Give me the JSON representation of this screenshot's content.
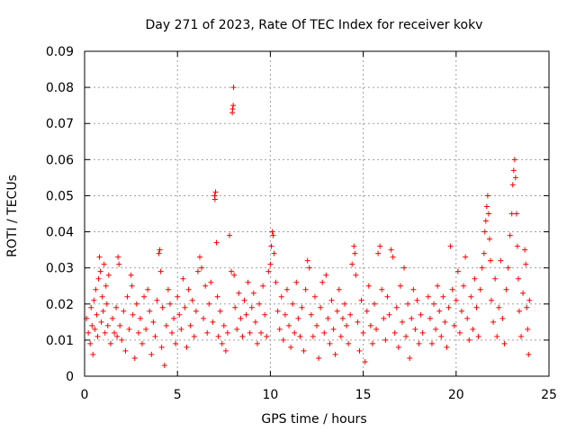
{
  "chart_data": {
    "type": "scatter",
    "title": "Day 271 of 2023, Rate Of TEC Index for receiver kokv",
    "xlabel": "GPS time / hours",
    "ylabel": "ROTI / TECUs",
    "xlim": [
      0,
      25
    ],
    "ylim": [
      0,
      0.09
    ],
    "xticks": [
      0,
      5,
      10,
      15,
      20,
      25
    ],
    "xtick_labels": [
      "0",
      "5",
      "10",
      "15",
      "20",
      "25"
    ],
    "yticks": [
      0,
      0.01,
      0.02,
      0.03,
      0.04,
      0.05,
      0.06,
      0.07,
      0.08,
      0.09
    ],
    "ytick_labels": [
      "0",
      "0.01",
      "0.02",
      "0.03",
      "0.04",
      "0.05",
      "0.06",
      "0.07",
      "0.08",
      "0.09"
    ],
    "grid": true,
    "marker": "+",
    "color": "#ff0000",
    "series": [
      {
        "name": "ROTI",
        "points": [
          [
            0.1,
            0.016
          ],
          [
            0.2,
            0.012
          ],
          [
            0.3,
            0.009
          ],
          [
            0.35,
            0.019
          ],
          [
            0.4,
            0.014
          ],
          [
            0.45,
            0.006
          ],
          [
            0.5,
            0.021
          ],
          [
            0.55,
            0.013
          ],
          [
            0.6,
            0.024
          ],
          [
            0.65,
            0.017
          ],
          [
            0.7,
            0.011
          ],
          [
            0.75,
            0.027
          ],
          [
            0.8,
            0.033
          ],
          [
            0.85,
            0.029
          ],
          [
            0.9,
            0.015
          ],
          [
            0.95,
            0.022
          ],
          [
            1.0,
            0.018
          ],
          [
            1.05,
            0.031
          ],
          [
            1.1,
            0.012
          ],
          [
            1.15,
            0.025
          ],
          [
            1.2,
            0.02
          ],
          [
            1.25,
            0.014
          ],
          [
            1.3,
            0.028
          ],
          [
            1.4,
            0.009
          ],
          [
            1.5,
            0.016
          ],
          [
            1.6,
            0.012
          ],
          [
            1.7,
            0.019
          ],
          [
            1.75,
            0.011
          ],
          [
            1.8,
            0.033
          ],
          [
            1.85,
            0.031
          ],
          [
            1.9,
            0.014
          ],
          [
            2.0,
            0.01
          ],
          [
            2.1,
            0.018
          ],
          [
            2.2,
            0.007
          ],
          [
            2.3,
            0.022
          ],
          [
            2.4,
            0.013
          ],
          [
            2.5,
            0.028
          ],
          [
            2.55,
            0.025
          ],
          [
            2.6,
            0.017
          ],
          [
            2.7,
            0.005
          ],
          [
            2.8,
            0.02
          ],
          [
            2.9,
            0.012
          ],
          [
            3.0,
            0.016
          ],
          [
            3.1,
            0.009
          ],
          [
            3.2,
            0.022
          ],
          [
            3.3,
            0.013
          ],
          [
            3.4,
            0.024
          ],
          [
            3.5,
            0.018
          ],
          [
            3.6,
            0.006
          ],
          [
            3.7,
            0.015
          ],
          [
            3.8,
            0.011
          ],
          [
            3.9,
            0.021
          ],
          [
            4.0,
            0.034
          ],
          [
            4.05,
            0.035
          ],
          [
            4.1,
            0.029
          ],
          [
            4.15,
            0.008
          ],
          [
            4.2,
            0.019
          ],
          [
            4.3,
            0.003
          ],
          [
            4.4,
            0.014
          ],
          [
            4.5,
            0.024
          ],
          [
            4.6,
            0.02
          ],
          [
            4.7,
            0.012
          ],
          [
            4.8,
            0.016
          ],
          [
            4.9,
            0.009
          ],
          [
            5.0,
            0.022
          ],
          [
            5.1,
            0.017
          ],
          [
            5.2,
            0.013
          ],
          [
            5.3,
            0.027
          ],
          [
            5.4,
            0.019
          ],
          [
            5.5,
            0.008
          ],
          [
            5.6,
            0.024
          ],
          [
            5.7,
            0.014
          ],
          [
            5.8,
            0.021
          ],
          [
            5.9,
            0.011
          ],
          [
            6.0,
            0.018
          ],
          [
            6.1,
            0.029
          ],
          [
            6.2,
            0.033
          ],
          [
            6.3,
            0.03
          ],
          [
            6.4,
            0.016
          ],
          [
            6.5,
            0.025
          ],
          [
            6.6,
            0.012
          ],
          [
            6.7,
            0.02
          ],
          [
            6.8,
            0.026
          ],
          [
            6.9,
            0.015
          ],
          [
            7.0,
            0.05
          ],
          [
            7.02,
            0.049
          ],
          [
            7.05,
            0.051
          ],
          [
            7.1,
            0.037
          ],
          [
            7.15,
            0.022
          ],
          [
            7.2,
            0.011
          ],
          [
            7.3,
            0.018
          ],
          [
            7.4,
            0.009
          ],
          [
            7.5,
            0.014
          ],
          [
            7.6,
            0.007
          ],
          [
            7.7,
            0.012
          ],
          [
            7.8,
            0.039
          ],
          [
            7.9,
            0.029
          ],
          [
            7.95,
            0.073
          ],
          [
            7.97,
            0.074
          ],
          [
            8.0,
            0.075
          ],
          [
            8.02,
            0.08
          ],
          [
            8.05,
            0.028
          ],
          [
            8.1,
            0.019
          ],
          [
            8.2,
            0.013
          ],
          [
            8.3,
            0.023
          ],
          [
            8.4,
            0.016
          ],
          [
            8.5,
            0.011
          ],
          [
            8.6,
            0.021
          ],
          [
            8.7,
            0.017
          ],
          [
            8.8,
            0.026
          ],
          [
            8.9,
            0.012
          ],
          [
            9.0,
            0.019
          ],
          [
            9.1,
            0.023
          ],
          [
            9.2,
            0.015
          ],
          [
            9.3,
            0.009
          ],
          [
            9.4,
            0.02
          ],
          [
            9.5,
            0.012
          ],
          [
            9.6,
            0.025
          ],
          [
            9.7,
            0.017
          ],
          [
            9.8,
            0.011
          ],
          [
            9.9,
            0.029
          ],
          [
            10.0,
            0.031
          ],
          [
            10.05,
            0.036
          ],
          [
            10.1,
            0.04
          ],
          [
            10.15,
            0.039
          ],
          [
            10.2,
            0.034
          ],
          [
            10.3,
            0.026
          ],
          [
            10.4,
            0.018
          ],
          [
            10.5,
            0.013
          ],
          [
            10.6,
            0.022
          ],
          [
            10.7,
            0.01
          ],
          [
            10.8,
            0.017
          ],
          [
            10.9,
            0.024
          ],
          [
            11.0,
            0.014
          ],
          [
            11.1,
            0.008
          ],
          [
            11.2,
            0.02
          ],
          [
            11.3,
            0.012
          ],
          [
            11.4,
            0.026
          ],
          [
            11.5,
            0.016
          ],
          [
            11.6,
            0.011
          ],
          [
            11.7,
            0.019
          ],
          [
            11.8,
            0.007
          ],
          [
            11.9,
            0.024
          ],
          [
            12.0,
            0.032
          ],
          [
            12.1,
            0.03
          ],
          [
            12.2,
            0.017
          ],
          [
            12.3,
            0.011
          ],
          [
            12.4,
            0.022
          ],
          [
            12.5,
            0.014
          ],
          [
            12.6,
            0.005
          ],
          [
            12.7,
            0.019
          ],
          [
            12.8,
            0.026
          ],
          [
            12.9,
            0.012
          ],
          [
            13.0,
            0.028
          ],
          [
            13.1,
            0.016
          ],
          [
            13.2,
            0.009
          ],
          [
            13.3,
            0.021
          ],
          [
            13.4,
            0.013
          ],
          [
            13.5,
            0.006
          ],
          [
            13.6,
            0.018
          ],
          [
            13.7,
            0.024
          ],
          [
            13.8,
            0.011
          ],
          [
            13.9,
            0.016
          ],
          [
            14.0,
            0.02
          ],
          [
            14.1,
            0.014
          ],
          [
            14.2,
            0.009
          ],
          [
            14.3,
            0.017
          ],
          [
            14.4,
            0.031
          ],
          [
            14.5,
            0.036
          ],
          [
            14.55,
            0.034
          ],
          [
            14.6,
            0.028
          ],
          [
            14.7,
            0.015
          ],
          [
            14.8,
            0.007
          ],
          [
            14.9,
            0.021
          ],
          [
            15.0,
            0.012
          ],
          [
            15.1,
            0.004
          ],
          [
            15.2,
            0.018
          ],
          [
            15.3,
            0.025
          ],
          [
            15.4,
            0.014
          ],
          [
            15.5,
            0.009
          ],
          [
            15.6,
            0.02
          ],
          [
            15.7,
            0.013
          ],
          [
            15.8,
            0.034
          ],
          [
            15.9,
            0.036
          ],
          [
            16.0,
            0.024
          ],
          [
            16.1,
            0.016
          ],
          [
            16.2,
            0.01
          ],
          [
            16.3,
            0.022
          ],
          [
            16.4,
            0.017
          ],
          [
            16.5,
            0.035
          ],
          [
            16.6,
            0.033
          ],
          [
            16.7,
            0.012
          ],
          [
            16.8,
            0.019
          ],
          [
            16.9,
            0.008
          ],
          [
            17.0,
            0.025
          ],
          [
            17.1,
            0.015
          ],
          [
            17.2,
            0.03
          ],
          [
            17.3,
            0.011
          ],
          [
            17.4,
            0.02
          ],
          [
            17.5,
            0.005
          ],
          [
            17.6,
            0.016
          ],
          [
            17.7,
            0.024
          ],
          [
            17.8,
            0.013
          ],
          [
            17.9,
            0.021
          ],
          [
            18.0,
            0.009
          ],
          [
            18.1,
            0.017
          ],
          [
            18.2,
            0.012
          ],
          [
            18.5,
            0.022
          ],
          [
            18.6,
            0.016
          ],
          [
            18.7,
            0.009
          ],
          [
            18.8,
            0.02
          ],
          [
            18.9,
            0.013
          ],
          [
            19.0,
            0.025
          ],
          [
            19.1,
            0.018
          ],
          [
            19.2,
            0.011
          ],
          [
            19.3,
            0.022
          ],
          [
            19.4,
            0.015
          ],
          [
            19.5,
            0.008
          ],
          [
            19.6,
            0.019
          ],
          [
            19.7,
            0.036
          ],
          [
            19.8,
            0.024
          ],
          [
            19.9,
            0.014
          ],
          [
            20.0,
            0.021
          ],
          [
            20.1,
            0.029
          ],
          [
            20.2,
            0.012
          ],
          [
            20.3,
            0.018
          ],
          [
            20.4,
            0.025
          ],
          [
            20.5,
            0.033
          ],
          [
            20.6,
            0.016
          ],
          [
            20.7,
            0.01
          ],
          [
            20.8,
            0.022
          ],
          [
            20.9,
            0.013
          ],
          [
            21.0,
            0.027
          ],
          [
            21.1,
            0.019
          ],
          [
            21.2,
            0.011
          ],
          [
            21.3,
            0.024
          ],
          [
            21.4,
            0.03
          ],
          [
            21.5,
            0.034
          ],
          [
            21.55,
            0.04
          ],
          [
            21.6,
            0.043
          ],
          [
            21.65,
            0.047
          ],
          [
            21.7,
            0.05
          ],
          [
            21.75,
            0.045
          ],
          [
            21.8,
            0.038
          ],
          [
            21.85,
            0.032
          ],
          [
            21.9,
            0.021
          ],
          [
            22.0,
            0.015
          ],
          [
            22.1,
            0.027
          ],
          [
            22.2,
            0.011
          ],
          [
            22.3,
            0.019
          ],
          [
            22.4,
            0.032
          ],
          [
            22.5,
            0.016
          ],
          [
            22.6,
            0.009
          ],
          [
            22.7,
            0.024
          ],
          [
            22.8,
            0.03
          ],
          [
            22.9,
            0.039
          ],
          [
            23.0,
            0.045
          ],
          [
            23.05,
            0.053
          ],
          [
            23.1,
            0.057
          ],
          [
            23.15,
            0.06
          ],
          [
            23.2,
            0.055
          ],
          [
            23.25,
            0.045
          ],
          [
            23.3,
            0.036
          ],
          [
            23.35,
            0.027
          ],
          [
            23.4,
            0.018
          ],
          [
            23.5,
            0.011
          ],
          [
            23.6,
            0.023
          ],
          [
            23.7,
            0.035
          ],
          [
            23.75,
            0.031
          ],
          [
            23.8,
            0.019
          ],
          [
            23.85,
            0.013
          ],
          [
            23.9,
            0.006
          ],
          [
            23.95,
            0.021
          ]
        ]
      }
    ]
  }
}
